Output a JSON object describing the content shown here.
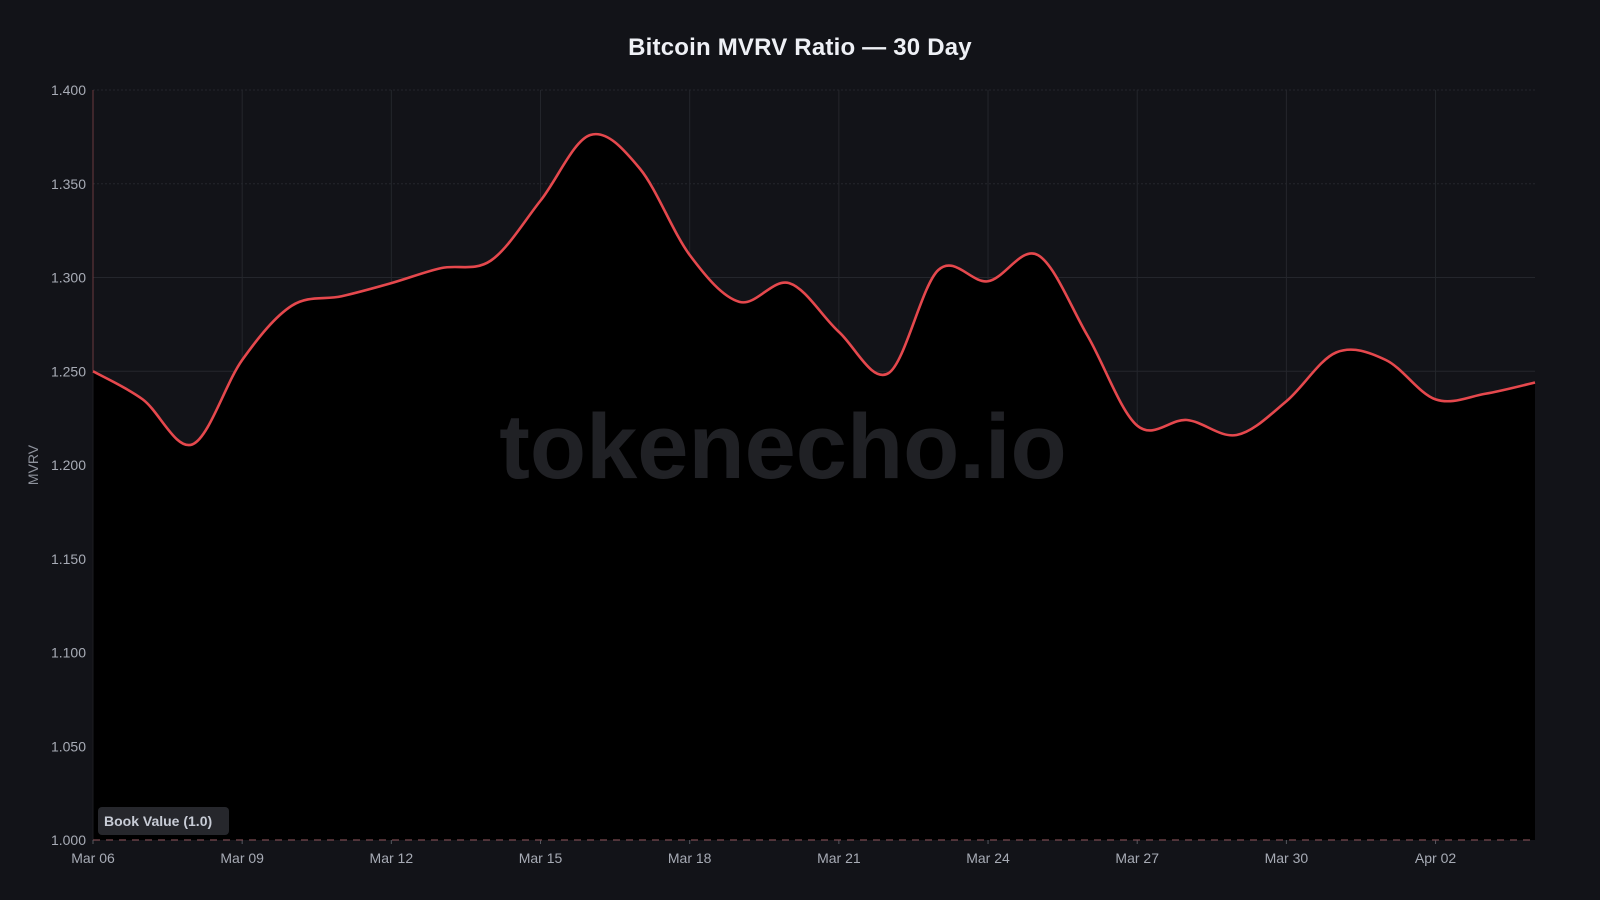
{
  "chart_data": {
    "type": "area",
    "title": "Bitcoin MVRV Ratio — 30 Day",
    "xlabel": "",
    "ylabel": "MVRV",
    "ylim": [
      1.0,
      1.4
    ],
    "yticks": [
      "1.000",
      "1.050",
      "1.100",
      "1.150",
      "1.200",
      "1.250",
      "1.300",
      "1.350",
      "1.400"
    ],
    "xticks": [
      "Mar 06",
      "Mar 09",
      "Mar 12",
      "Mar 15",
      "Mar 18",
      "Mar 21",
      "Mar 24",
      "Mar 27",
      "Mar 30",
      "Apr 02"
    ],
    "grid": true,
    "legend": null,
    "x": [
      "Mar 06",
      "Mar 07",
      "Mar 08",
      "Mar 09",
      "Mar 10",
      "Mar 11",
      "Mar 12",
      "Mar 13",
      "Mar 14",
      "Mar 15",
      "Mar 16",
      "Mar 17",
      "Mar 18",
      "Mar 19",
      "Mar 20",
      "Mar 21",
      "Mar 22",
      "Mar 23",
      "Mar 24",
      "Mar 25",
      "Mar 26",
      "Mar 27",
      "Mar 28",
      "Mar 29",
      "Mar 30",
      "Mar 31",
      "Apr 01",
      "Apr 02",
      "Apr 03",
      "Apr 04"
    ],
    "series": [
      {
        "name": "MVRV",
        "color": "#e5484d",
        "values": [
          1.25,
          1.235,
          1.211,
          1.256,
          1.285,
          1.29,
          1.297,
          1.305,
          1.309,
          1.341,
          1.376,
          1.358,
          1.312,
          1.287,
          1.297,
          1.271,
          1.249,
          1.304,
          1.298,
          1.312,
          1.269,
          1.221,
          1.224,
          1.216,
          1.234,
          1.26,
          1.256,
          1.235,
          1.238,
          1.244
        ]
      }
    ],
    "reference_line": {
      "value": 1.0,
      "label": "Book Value (1.0)",
      "style": "dashed"
    },
    "watermark": "tokenecho.io"
  },
  "colors": {
    "background": "#121318",
    "fill_below": "#000000",
    "line": "#e5484d",
    "grid": "#24262c",
    "reference": "#7a4a50"
  }
}
